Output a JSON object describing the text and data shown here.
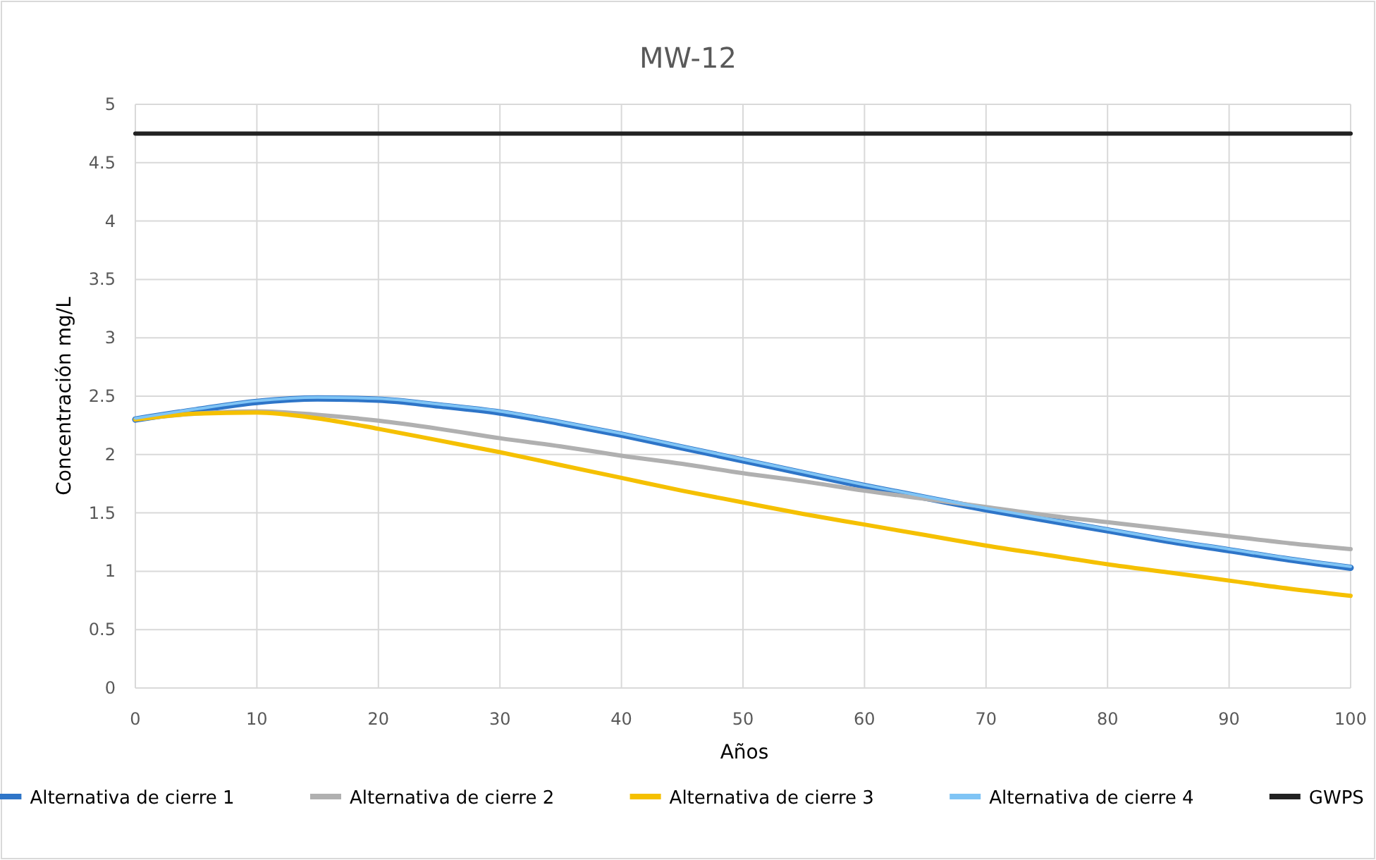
{
  "chart_data": {
    "type": "line",
    "title": "MW-12",
    "xlabel": "Años",
    "ylabel": "Concentración mg/L",
    "x": [
      0,
      5,
      10,
      15,
      20,
      25,
      30,
      35,
      40,
      45,
      50,
      55,
      60,
      65,
      70,
      75,
      80,
      85,
      90,
      95,
      100
    ],
    "series": [
      {
        "name": "Alternativa de cierre 1",
        "color": "#2e75c8",
        "values": [
          2.3,
          2.38,
          2.45,
          2.48,
          2.47,
          2.42,
          2.36,
          2.27,
          2.17,
          2.06,
          1.95,
          1.84,
          1.73,
          1.63,
          1.53,
          1.44,
          1.35,
          1.26,
          1.18,
          1.1,
          1.03
        ]
      },
      {
        "name": "Alternativa de cierre 2",
        "color": "#b0b0b0",
        "values": [
          2.3,
          2.35,
          2.37,
          2.34,
          2.29,
          2.22,
          2.14,
          2.07,
          1.99,
          1.92,
          1.84,
          1.77,
          1.69,
          1.62,
          1.55,
          1.48,
          1.42,
          1.36,
          1.3,
          1.24,
          1.19
        ]
      },
      {
        "name": "Alternativa de cierre 3",
        "color": "#f5c000",
        "values": [
          2.3,
          2.35,
          2.36,
          2.31,
          2.22,
          2.12,
          2.02,
          1.91,
          1.8,
          1.69,
          1.59,
          1.49,
          1.4,
          1.31,
          1.22,
          1.14,
          1.06,
          0.99,
          0.92,
          0.85,
          0.79
        ]
      },
      {
        "name": "Alternativa de cierre 4",
        "color": "#7fc4f5",
        "values": [
          2.31,
          2.39,
          2.46,
          2.49,
          2.48,
          2.43,
          2.37,
          2.28,
          2.18,
          2.07,
          1.96,
          1.85,
          1.74,
          1.64,
          1.54,
          1.45,
          1.36,
          1.27,
          1.19,
          1.11,
          1.04
        ]
      },
      {
        "name": "GWPS",
        "color": "#222222",
        "x": [
          0,
          100
        ],
        "values": [
          4.75,
          4.75
        ]
      }
    ],
    "xlim": [
      0,
      100
    ],
    "xticks": [
      0,
      10,
      20,
      30,
      40,
      50,
      60,
      70,
      80,
      90,
      100
    ],
    "ylim": [
      0,
      5
    ],
    "yticks": [
      0,
      0.5,
      1,
      1.5,
      2,
      2.5,
      3,
      3.5,
      4,
      4.5,
      5
    ],
    "grid": true,
    "legend": "bottom",
    "marker": "none",
    "line_style": "solid"
  }
}
